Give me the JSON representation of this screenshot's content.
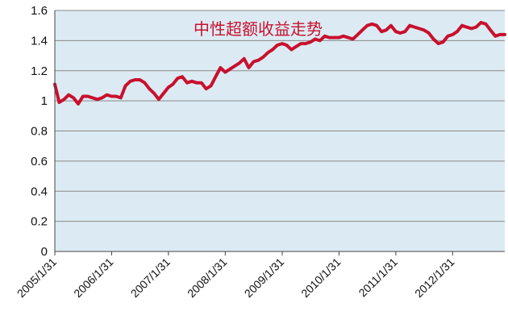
{
  "chart_data": {
    "type": "line",
    "title": "中性超额收益走势",
    "xlabel": "",
    "ylabel": "",
    "ylim": [
      0,
      1.6
    ],
    "y_ticks": [
      "0",
      "0.2",
      "0.4",
      "0.6",
      "0.8",
      "1",
      "1.2",
      "1.4",
      "1.6"
    ],
    "x_ticks": [
      "2005/1/31",
      "2006/1/31",
      "2007/1/31",
      "2008/1/31",
      "2009/1/31",
      "2010/1/31",
      "2011/1/31",
      "2012/1/31"
    ],
    "xlim": [
      "2005/1/31",
      "2012/12/31"
    ],
    "grid": true,
    "legend": "none",
    "colors": {
      "line": "#c8102e",
      "plot_bg": "#dcebf3",
      "grid": "#8a8a8a",
      "title": "#c8102e"
    },
    "series": [
      {
        "values": [
          [
            "2005/1/31",
            1.11
          ],
          [
            "2005/2/28",
            0.99
          ],
          [
            "2005/3/31",
            1.01
          ],
          [
            "2005/4/30",
            1.04
          ],
          [
            "2005/5/31",
            1.02
          ],
          [
            "2005/6/30",
            0.98
          ],
          [
            "2005/7/31",
            1.03
          ],
          [
            "2005/8/31",
            1.03
          ],
          [
            "2005/9/30",
            1.02
          ],
          [
            "2005/10/31",
            1.01
          ],
          [
            "2005/11/30",
            1.02
          ],
          [
            "2005/12/31",
            1.04
          ],
          [
            "2006/1/31",
            1.03
          ],
          [
            "2006/2/28",
            1.03
          ],
          [
            "2006/3/31",
            1.02
          ],
          [
            "2006/4/30",
            1.1
          ],
          [
            "2006/5/31",
            1.13
          ],
          [
            "2006/6/30",
            1.14
          ],
          [
            "2006/7/31",
            1.14
          ],
          [
            "2006/8/31",
            1.12
          ],
          [
            "2006/9/30",
            1.08
          ],
          [
            "2006/10/31",
            1.05
          ],
          [
            "2006/11/30",
            1.01
          ],
          [
            "2006/12/31",
            1.05
          ],
          [
            "2007/1/31",
            1.09
          ],
          [
            "2007/2/28",
            1.11
          ],
          [
            "2007/3/31",
            1.15
          ],
          [
            "2007/4/30",
            1.16
          ],
          [
            "2007/5/31",
            1.12
          ],
          [
            "2007/6/30",
            1.13
          ],
          [
            "2007/7/31",
            1.12
          ],
          [
            "2007/8/31",
            1.12
          ],
          [
            "2007/9/30",
            1.08
          ],
          [
            "2007/10/31",
            1.1
          ],
          [
            "2007/11/30",
            1.16
          ],
          [
            "2007/12/31",
            1.22
          ],
          [
            "2008/1/31",
            1.19
          ],
          [
            "2008/2/29",
            1.21
          ],
          [
            "2008/3/31",
            1.23
          ],
          [
            "2008/4/30",
            1.25
          ],
          [
            "2008/5/31",
            1.28
          ],
          [
            "2008/6/30",
            1.22
          ],
          [
            "2008/7/31",
            1.26
          ],
          [
            "2008/8/31",
            1.27
          ],
          [
            "2008/9/30",
            1.29
          ],
          [
            "2008/10/31",
            1.32
          ],
          [
            "2008/11/30",
            1.34
          ],
          [
            "2008/12/31",
            1.37
          ],
          [
            "2009/1/31",
            1.38
          ],
          [
            "2009/2/28",
            1.37
          ],
          [
            "2009/3/31",
            1.34
          ],
          [
            "2009/4/30",
            1.36
          ],
          [
            "2009/5/31",
            1.38
          ],
          [
            "2009/6/30",
            1.38
          ],
          [
            "2009/7/31",
            1.39
          ],
          [
            "2009/8/31",
            1.41
          ],
          [
            "2009/9/30",
            1.4
          ],
          [
            "2009/10/31",
            1.43
          ],
          [
            "2009/11/30",
            1.42
          ],
          [
            "2009/12/31",
            1.42
          ],
          [
            "2010/1/31",
            1.42
          ],
          [
            "2010/2/28",
            1.43
          ],
          [
            "2010/3/31",
            1.42
          ],
          [
            "2010/4/30",
            1.41
          ],
          [
            "2010/5/31",
            1.44
          ],
          [
            "2010/6/30",
            1.47
          ],
          [
            "2010/7/31",
            1.5
          ],
          [
            "2010/8/31",
            1.51
          ],
          [
            "2010/9/30",
            1.5
          ],
          [
            "2010/10/31",
            1.46
          ],
          [
            "2010/11/30",
            1.47
          ],
          [
            "2010/12/31",
            1.5
          ],
          [
            "2011/1/31",
            1.46
          ],
          [
            "2011/2/28",
            1.45
          ],
          [
            "2011/3/31",
            1.46
          ],
          [
            "2011/4/30",
            1.5
          ],
          [
            "2011/5/31",
            1.49
          ],
          [
            "2011/6/30",
            1.48
          ],
          [
            "2011/7/31",
            1.47
          ],
          [
            "2011/8/31",
            1.45
          ],
          [
            "2011/9/30",
            1.41
          ],
          [
            "2011/10/31",
            1.38
          ],
          [
            "2011/11/30",
            1.39
          ],
          [
            "2011/12/31",
            1.43
          ],
          [
            "2012/1/31",
            1.44
          ],
          [
            "2012/2/29",
            1.46
          ],
          [
            "2012/3/31",
            1.5
          ],
          [
            "2012/4/30",
            1.49
          ],
          [
            "2012/5/31",
            1.48
          ],
          [
            "2012/6/30",
            1.49
          ],
          [
            "2012/7/31",
            1.52
          ],
          [
            "2012/8/31",
            1.51
          ],
          [
            "2012/9/30",
            1.47
          ],
          [
            "2012/10/31",
            1.43
          ],
          [
            "2012/11/30",
            1.44
          ],
          [
            "2012/12/31",
            1.44
          ]
        ]
      }
    ]
  }
}
